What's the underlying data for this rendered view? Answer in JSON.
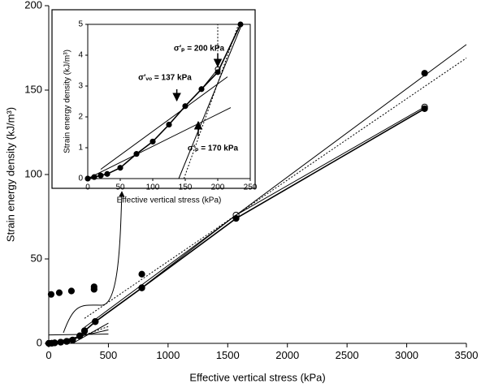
{
  "chart_data": [
    {
      "type": "line",
      "frame": "axes",
      "x_label": "Effective vertical stress (kPa)",
      "y_label": "Strain energy density (kJ/m³)",
      "xlim": [
        0,
        3500
      ],
      "xticks": [
        0,
        500,
        1000,
        1500,
        2000,
        2500,
        3000,
        3500
      ],
      "ylim": [
        0,
        200
      ],
      "yticks": [
        0,
        50,
        100,
        150,
        200
      ],
      "series": [
        {
          "color": "#000",
          "marker": "open",
          "line": "solid",
          "x": [
            0,
            25,
            50,
            100,
            150,
            200,
            260,
            300,
            390,
            780,
            1570,
            3150
          ],
          "values": [
            0,
            0.1,
            0.3,
            0.7,
            1.2,
            2,
            4.5,
            7.5,
            13,
            33,
            76,
            140
          ]
        },
        {
          "color": "#000",
          "marker": "filled",
          "line": "solid",
          "x": [
            0,
            25,
            50,
            100,
            150,
            200,
            260,
            300,
            390,
            780,
            1570,
            3150
          ],
          "values": [
            0,
            0.1,
            0.3,
            0.7,
            1.1,
            1.9,
            4.3,
            7.3,
            12.8,
            32.8,
            74,
            139
          ]
        },
        {
          "color": "#000",
          "marker": "filled",
          "line": "none",
          "x": [
            20,
            88,
            190,
            380,
            380,
            780,
            3150
          ],
          "values": [
            29,
            30,
            31,
            32,
            33.5,
            41,
            160
          ]
        },
        {
          "color": "#000",
          "marker": "none",
          "line": "solid",
          "x": [
            300,
            3500
          ],
          "values": [
            9.5,
            177
          ]
        },
        {
          "color": "#000",
          "marker": "none",
          "line": "dotted",
          "x": [
            300,
            3500
          ],
          "values": [
            14.8,
            169
          ]
        },
        {
          "color": "#000",
          "marker": "none",
          "line": "solid",
          "x": [
            0,
            500
          ],
          "values": [
            5,
            5.5
          ]
        },
        {
          "color": "#000",
          "marker": "none",
          "line": "solid",
          "x": [
            0,
            500
          ],
          "values": [
            0,
            8
          ]
        },
        {
          "color": "#000",
          "marker": "none",
          "line": "dotted",
          "x": [
            100,
            500
          ],
          "values": [
            0,
            10
          ]
        },
        {
          "color": "#000",
          "marker": "none",
          "line": "solid",
          "x": [
            200,
            500
          ],
          "values": [
            0,
            12
          ]
        }
      ]
    },
    {
      "type": "line",
      "frame": "box",
      "x_label": "Effective vertical stress (kPa)",
      "y_label": "Strain energy density (kJ/m³)",
      "xlim": [
        0,
        250
      ],
      "xticks": [
        0,
        50,
        100,
        150,
        200,
        250
      ],
      "ylim": [
        0,
        5
      ],
      "yticks": [
        0,
        1,
        2,
        3,
        4,
        5
      ],
      "annotations": [
        "σ′ₚ = 200 kPa",
        "σ′ᵥₒ = 137 kPa",
        "σ′ₚ = 170 kPa"
      ],
      "series": [
        {
          "color": "#000",
          "marker": "open",
          "line": "solid",
          "x": [
            0,
            10,
            20,
            30,
            50,
            75,
            100,
            125,
            150,
            175,
            200
          ],
          "values": [
            0,
            0.05,
            0.1,
            0.15,
            0.35,
            0.8,
            1.2,
            1.75,
            2.35,
            2.9,
            3.55
          ]
        },
        {
          "color": "#000",
          "marker": "filled",
          "line": "solid",
          "x": [
            0,
            10,
            20,
            30,
            50,
            75,
            100,
            125,
            150,
            175,
            200,
            235
          ],
          "values": [
            0,
            0.05,
            0.1,
            0.15,
            0.35,
            0.8,
            1.2,
            1.75,
            2.35,
            2.9,
            3.45,
            5
          ]
        },
        {
          "color": "#000",
          "marker": "none",
          "line": "solid",
          "x": [
            0,
            220
          ],
          "values": [
            0,
            2.3
          ]
        },
        {
          "color": "#000",
          "marker": "none",
          "line": "solid",
          "x": [
            20,
            215
          ],
          "values": [
            0.3,
            3.3
          ]
        },
        {
          "color": "#000",
          "marker": "none",
          "line": "solid",
          "x": [
            140,
            237
          ],
          "values": [
            0,
            5
          ]
        },
        {
          "color": "#000",
          "marker": "none",
          "line": "dotted",
          "x": [
            148,
            232
          ],
          "values": [
            0,
            5
          ]
        },
        {
          "color": "#000",
          "marker": "none",
          "line": "dotted",
          "x": [
            200,
            200
          ],
          "values": [
            3.6,
            5
          ]
        }
      ]
    }
  ]
}
